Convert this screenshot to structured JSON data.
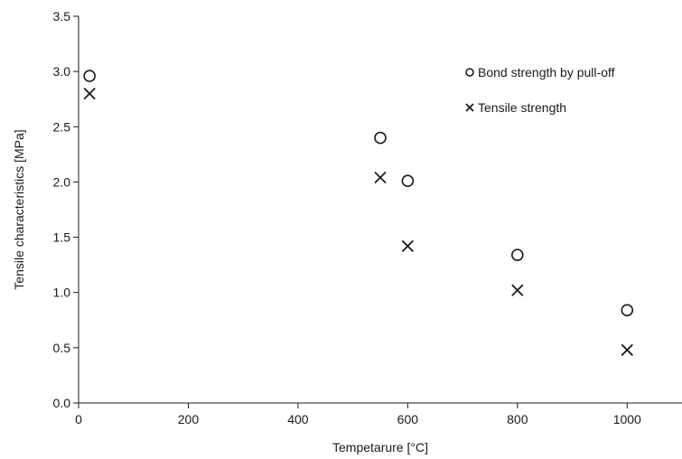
{
  "chart_data": {
    "type": "scatter",
    "title": "",
    "xlabel": "Tempetarure [°C]",
    "ylabel": "Tensile characteristics [MPa]",
    "xlim": [
      0,
      1100
    ],
    "ylim": [
      0,
      3.5
    ],
    "x_ticks": [
      0,
      200,
      400,
      600,
      800,
      1000
    ],
    "x_tick_labels": [
      "0",
      "200",
      "400",
      "600",
      "800",
      "1000"
    ],
    "y_ticks": [
      0,
      0.5,
      1,
      1.5,
      2,
      2.5,
      3,
      3.5
    ],
    "y_tick_labels": [
      "0.0",
      "0.5",
      "1.0",
      "1.5",
      "2.0",
      "2.5",
      "3.0",
      "3.5"
    ],
    "grid": false,
    "legend_position": "top-right",
    "series": [
      {
        "name": "Bond strength by pull-off",
        "marker": "circle",
        "color": "#1a1a1a",
        "points": [
          {
            "x": 20,
            "y": 2.96
          },
          {
            "x": 550,
            "y": 2.4
          },
          {
            "x": 600,
            "y": 2.01
          },
          {
            "x": 800,
            "y": 1.34
          },
          {
            "x": 1000,
            "y": 0.84
          }
        ]
      },
      {
        "name": "Tensile strength",
        "marker": "x",
        "color": "#1a1a1a",
        "points": [
          {
            "x": 20,
            "y": 2.8
          },
          {
            "x": 550,
            "y": 2.04
          },
          {
            "x": 600,
            "y": 1.42
          },
          {
            "x": 800,
            "y": 1.02
          },
          {
            "x": 1000,
            "y": 0.48
          }
        ]
      }
    ]
  }
}
